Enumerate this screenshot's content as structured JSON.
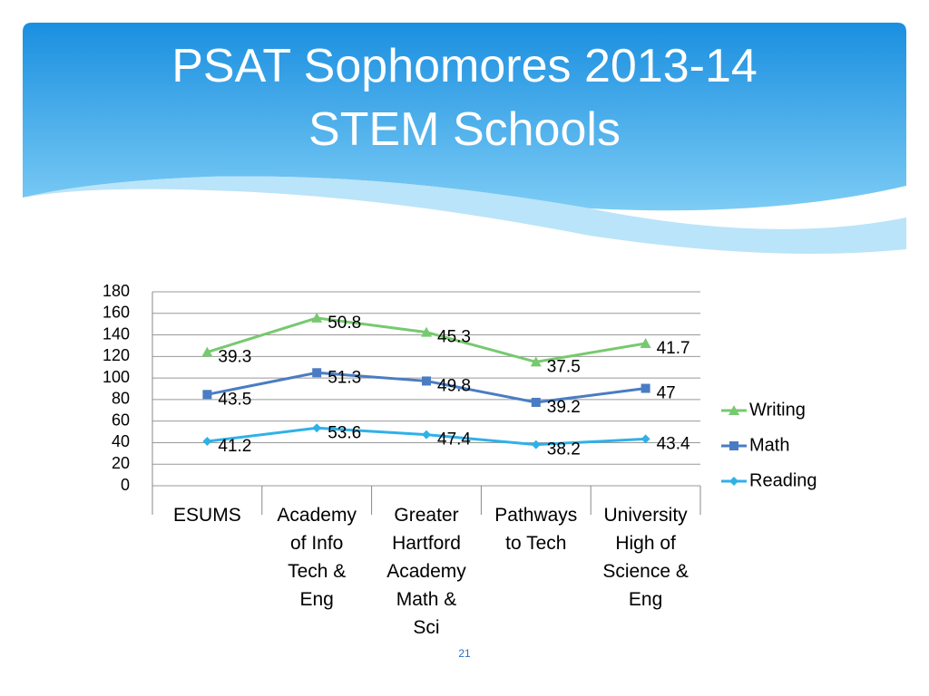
{
  "chart_data": {
    "type": "line",
    "title": "PSAT Sophomores 2013-14 STEM Schools",
    "stacked": true,
    "categories": [
      "ESUMS",
      "Academy of Info Tech & Eng",
      "Greater Hartford Academy Math & Sci",
      "Pathways to Tech",
      "University High of Science & Eng"
    ],
    "series": [
      {
        "name": "Writing",
        "color": "#77c96f",
        "marker": "triangle",
        "values": [
          39.3,
          50.8,
          45.3,
          37.5,
          41.7
        ]
      },
      {
        "name": "Math",
        "color": "#4a7cc3",
        "marker": "square",
        "values": [
          43.5,
          51.3,
          49.8,
          39.2,
          47
        ]
      },
      {
        "name": "Reading",
        "color": "#2fb1e8",
        "marker": "diamond",
        "values": [
          41.2,
          53.6,
          47.4,
          38.2,
          43.4
        ]
      }
    ],
    "ylim": [
      0,
      180
    ],
    "yticks": [
      0,
      20,
      40,
      60,
      80,
      100,
      120,
      140,
      160,
      180
    ],
    "grid": true,
    "legend": "right"
  },
  "page_number": "21"
}
